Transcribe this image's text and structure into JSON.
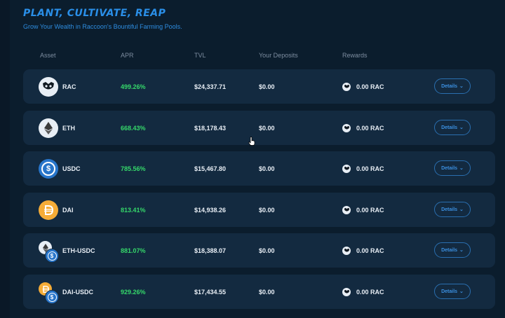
{
  "header": {
    "title": "Plant, Cultivate, Reap",
    "subtitle": "Grow Your Wealth in Raccoon's Bountiful Farming Pools."
  },
  "columns": {
    "asset": "Asset",
    "apr": "APR",
    "tvl": "TVL",
    "deposits": "Your Deposits",
    "rewards": "Rewards"
  },
  "rows": [
    {
      "asset": "RAC",
      "apr": "499.26%",
      "tvl": "$24,337.71",
      "deposit": "$0.00",
      "reward": "0.00 RAC",
      "details": "Details",
      "icon": "raccoon-icon"
    },
    {
      "asset": "ETH",
      "apr": "668.43%",
      "tvl": "$18,178.43",
      "deposit": "$0.00",
      "reward": "0.00 RAC",
      "details": "Details",
      "icon": "ethereum-icon"
    },
    {
      "asset": "USDC",
      "apr": "785.56%",
      "tvl": "$15,467.80",
      "deposit": "$0.00",
      "reward": "0.00 RAC",
      "details": "Details",
      "icon": "usdc-icon"
    },
    {
      "asset": "DAI",
      "apr": "813.41%",
      "tvl": "$14,938.26",
      "deposit": "$0.00",
      "reward": "0.00 RAC",
      "details": "Details",
      "icon": "dai-icon"
    },
    {
      "asset": "ETH-USDC",
      "apr": "881.07%",
      "tvl": "$18,388.07",
      "deposit": "$0.00",
      "reward": "0.00 RAC",
      "details": "Details",
      "icon": "eth-usdc-pair-icon"
    },
    {
      "asset": "DAI-USDC",
      "apr": "929.26%",
      "tvl": "$17,434.55",
      "deposit": "$0.00",
      "reward": "0.00 RAC",
      "details": "Details",
      "icon": "dai-usdc-pair-icon"
    }
  ],
  "colors": {
    "background": "#0b1d2d",
    "row": "#132a40",
    "accent": "#2a8fe8",
    "apr": "#35d86a"
  }
}
